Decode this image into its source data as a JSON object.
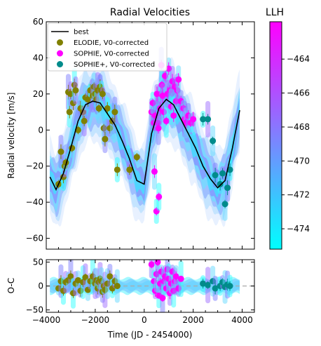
{
  "chart_data": [
    {
      "type": "scatter",
      "title": "Radial Velocities",
      "xlabel": "",
      "ylabel": "Radial velocity [m/s]",
      "xlim": [
        -4000,
        4500
      ],
      "ylim": [
        -66,
        60
      ],
      "yticks": [
        -60,
        -40,
        -20,
        0,
        20,
        40,
        60
      ],
      "legend": {
        "placement": "top-left",
        "entries": [
          {
            "name": "best",
            "marker": "line",
            "color": "#000000"
          },
          {
            "name": "ELODIE, V0-corrected",
            "marker": "circle",
            "color": "#808000"
          },
          {
            "name": "SOPHIE, V0-corrected",
            "marker": "circle",
            "color": "#ff00ff"
          },
          {
            "name": "SOPHIE+, V0-corrected",
            "marker": "circle",
            "color": "#008b8b"
          }
        ]
      },
      "best_model": {
        "name": "best",
        "x": [
          -3850,
          -3600,
          -3300,
          -3000,
          -2700,
          -2400,
          -2100,
          -1800,
          -1500,
          -1200,
          -900,
          -600,
          -300,
          0,
          300,
          600,
          900,
          1200,
          1500,
          1800,
          2100,
          2400,
          2700,
          3000,
          3300,
          3600,
          3900
        ],
        "y": [
          -26,
          -33,
          -24,
          -10,
          5,
          14,
          16,
          15,
          9,
          3,
          -6,
          -16,
          -28,
          -30,
          -2,
          12,
          17,
          14,
          6,
          -2,
          -10,
          -20,
          -27,
          -32,
          -28,
          -10,
          11
        ]
      },
      "series": [
        {
          "name": "ELODIE, V0-corrected",
          "color": "#808000",
          "x": [
            -3500,
            -3400,
            -3300,
            -3250,
            -3200,
            -3100,
            -3050,
            -3000,
            -2950,
            -2900,
            -2850,
            -2800,
            -2700,
            -2600,
            -2500,
            -2450,
            -2400,
            -2300,
            -2200,
            -2100,
            -2050,
            -2000,
            -1950,
            -1900,
            -1850,
            -1800,
            -1750,
            -1700,
            -1650,
            -1600,
            -1500,
            -1400,
            -1300,
            -1200,
            -1100,
            -600,
            -300
          ],
          "y": [
            -30,
            -12,
            -26,
            -20,
            -18,
            21,
            10,
            20,
            -10,
            15,
            25,
            22,
            0,
            12,
            10,
            5,
            18,
            17,
            22,
            19,
            24,
            20,
            17,
            22,
            12,
            24,
            22,
            20,
            1,
            -5,
            12,
            1,
            5,
            10,
            -22,
            -22,
            -15
          ]
        },
        {
          "name": "SOPHIE, V0-corrected",
          "color": "#ff00ff",
          "x": [
            300,
            350,
            400,
            420,
            450,
            500,
            520,
            550,
            580,
            600,
            650,
            680,
            700,
            720,
            750,
            800,
            850,
            900,
            950,
            1000,
            1050,
            1100,
            1150,
            1200,
            1250,
            1300,
            1350,
            1400,
            1500,
            1600,
            1650,
            1700,
            1800,
            1900,
            2000
          ],
          "y": [
            10,
            15,
            4,
            -23,
            8,
            -45,
            20,
            4,
            1,
            -37,
            12,
            20,
            36,
            25,
            19,
            10,
            30,
            5,
            20,
            34,
            22,
            13,
            27,
            8,
            24,
            16,
            22,
            28,
            16,
            12,
            6,
            4,
            8,
            4,
            6
          ]
        },
        {
          "name": "SOPHIE+, V0-corrected",
          "color": "#008b8b",
          "x": [
            2400,
            2600,
            2800,
            2900,
            3100,
            3200,
            3300,
            3400,
            3500
          ],
          "y": [
            6,
            6,
            -6,
            -25,
            -30,
            -24,
            -41,
            -32,
            -22
          ]
        }
      ]
    },
    {
      "type": "scatter",
      "title": "",
      "xlabel": "Time (JD - 2454000)",
      "ylabel": "O-C",
      "xlim": [
        -4000,
        4500
      ],
      "ylim": [
        -55,
        55
      ],
      "xticks": [
        -4000,
        -2000,
        0,
        2000,
        4000
      ],
      "yticks": [
        -50,
        0,
        50
      ],
      "zero_line": true,
      "series": [
        {
          "name": "ELODIE, V0-corrected",
          "color": "#808000",
          "x": [
            -3500,
            -3400,
            -3300,
            -3200,
            -3100,
            -3000,
            -2900,
            -2800,
            -2700,
            -2600,
            -2500,
            -2400,
            -2300,
            -2200,
            -2100,
            -2000,
            -1950,
            -1900,
            -1850,
            -1800,
            -1750,
            -1700,
            -1650,
            -1600,
            -1500,
            -1400,
            -1300,
            -1200,
            -1100
          ],
          "y": [
            -5,
            10,
            -10,
            8,
            12,
            20,
            -15,
            5,
            12,
            -10,
            8,
            18,
            -8,
            10,
            20,
            5,
            12,
            -5,
            8,
            15,
            10,
            -12,
            0,
            -8,
            5,
            20,
            -5,
            10,
            0
          ]
        },
        {
          "name": "SOPHIE, V0-corrected",
          "color": "#ff00ff",
          "x": [
            300,
            400,
            450,
            500,
            550,
            600,
            650,
            700,
            750,
            800,
            850,
            900,
            950,
            1000,
            1050,
            1100,
            1150,
            1200,
            1250,
            1300,
            1400,
            1500
          ],
          "y": [
            45,
            10,
            -10,
            25,
            50,
            -20,
            5,
            30,
            -25,
            10,
            20,
            -5,
            35,
            15,
            -15,
            5,
            30,
            -10,
            10,
            20,
            -5,
            15
          ]
        },
        {
          "name": "SOPHIE+, V0-corrected",
          "color": "#008b8b",
          "x": [
            2400,
            2600,
            2800,
            2900,
            3100,
            3200,
            3300,
            3400,
            3500
          ],
          "y": [
            5,
            2,
            10,
            -5,
            0,
            8,
            -2,
            3,
            0
          ]
        }
      ]
    }
  ],
  "colorbar": {
    "title": "LLH",
    "ticks": [
      -464,
      -466,
      -468,
      -470,
      -472,
      -474
    ],
    "range": [
      -475.2,
      -461.8
    ],
    "colors": [
      "#00ffff",
      "#ff00ff"
    ]
  }
}
